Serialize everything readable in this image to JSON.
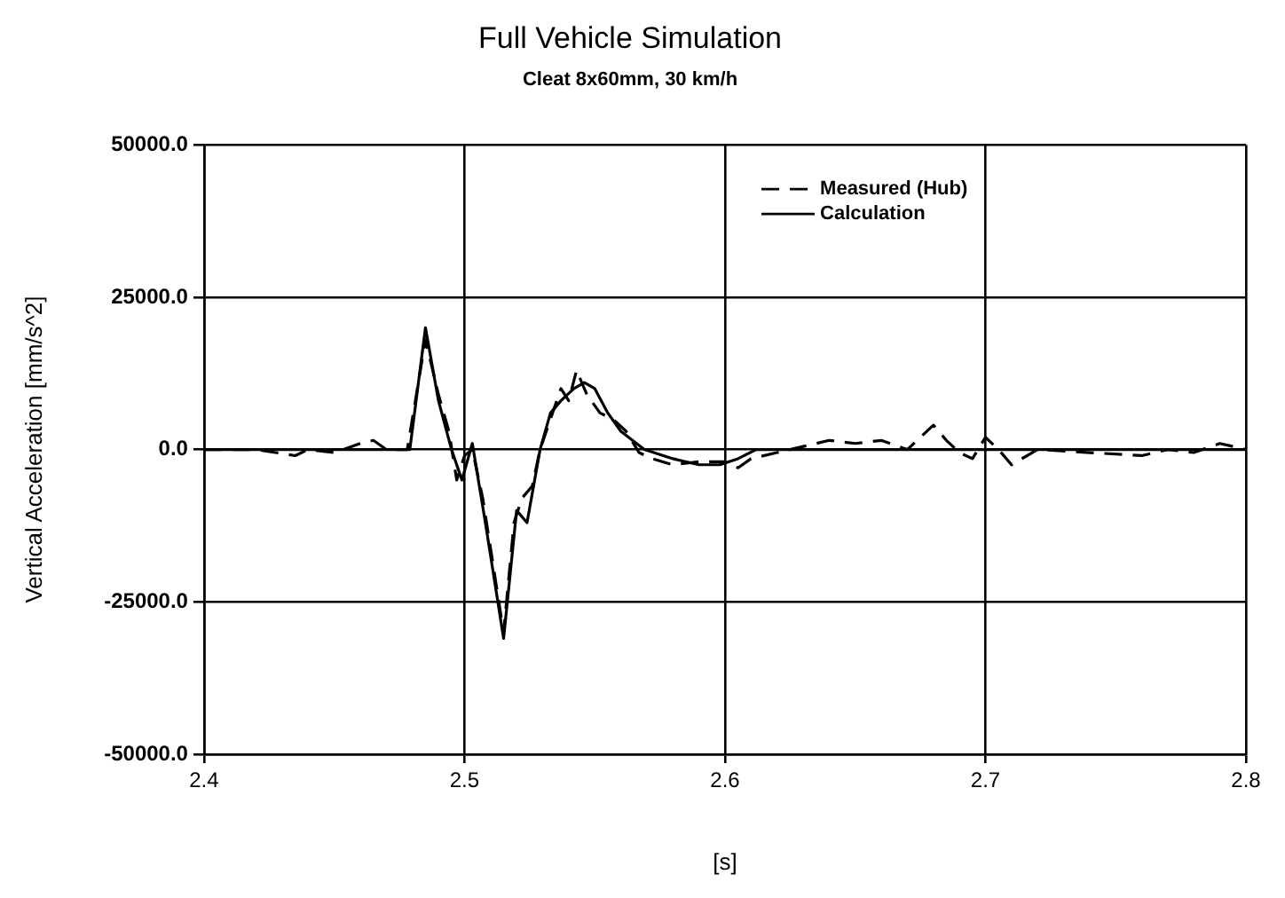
{
  "chart_data": {
    "type": "line",
    "title": "Full Vehicle Simulation",
    "subtitle": "Cleat 8x60mm, 30 km/h",
    "xlabel": "[s]",
    "ylabel": "Vertical Acceleration [mm/s^2]",
    "xlim": [
      2.4,
      2.8
    ],
    "xticks": [
      2.4,
      2.5,
      2.6,
      2.7,
      2.8
    ],
    "ylim": [
      -50000,
      50000
    ],
    "yticks": [
      {
        "value": -50000,
        "label": "-50000.0"
      },
      {
        "value": -25000,
        "label": "-25000.0"
      },
      {
        "value": 0,
        "label": "0.0"
      },
      {
        "value": 25000,
        "label": "25000.0"
      },
      {
        "value": 50000,
        "label": "50000.0"
      }
    ],
    "grid": true,
    "legend": "top right",
    "marker": "none",
    "series": [
      {
        "name": "Measured (Hub)",
        "color": "#000000",
        "line_style": "dashed",
        "x": [
          2.4,
          2.42,
          2.435,
          2.44,
          2.45,
          2.46,
          2.465,
          2.47,
          2.478,
          2.485,
          2.49,
          2.494,
          2.497,
          2.5,
          2.503,
          2.507,
          2.515,
          2.519,
          2.522,
          2.526,
          2.529,
          2.533,
          2.537,
          2.54,
          2.543,
          2.547,
          2.552,
          2.557,
          2.562,
          2.567,
          2.572,
          2.58,
          2.59,
          2.6,
          2.605,
          2.61,
          2.62,
          2.63,
          2.64,
          2.65,
          2.66,
          2.67,
          2.68,
          2.685,
          2.69,
          2.695,
          2.7,
          2.705,
          2.71,
          2.72,
          2.74,
          2.76,
          2.77,
          2.78,
          2.79,
          2.8
        ],
        "values": [
          0,
          0,
          -1000,
          0,
          -500,
          1000,
          1500,
          0,
          0,
          18000,
          9000,
          3000,
          -5000,
          -1000,
          0,
          -8000,
          -30000,
          -12000,
          -8000,
          -6000,
          0,
          5000,
          10000,
          8000,
          13000,
          9000,
          6000,
          5000,
          3000,
          -500,
          -1500,
          -2500,
          -2000,
          -2000,
          -3000,
          -1500,
          -500,
          500,
          1500,
          1000,
          1500,
          0,
          4000,
          1500,
          -500,
          -1500,
          2000,
          0,
          -2500,
          0,
          -500,
          -1000,
          0,
          -500,
          1000,
          0
        ]
      },
      {
        "name": "Calculation",
        "color": "#000000",
        "line_style": "solid",
        "x": [
          2.4,
          2.47,
          2.479,
          2.485,
          2.49,
          2.495,
          2.499,
          2.503,
          2.508,
          2.515,
          2.52,
          2.524,
          2.529,
          2.533,
          2.537,
          2.542,
          2.546,
          2.55,
          2.555,
          2.56,
          2.569,
          2.58,
          2.59,
          2.598,
          2.605,
          2.612,
          2.65,
          2.7,
          2.75,
          2.8
        ],
        "values": [
          0,
          0,
          0,
          20000,
          8000,
          0,
          -5000,
          1000,
          -12000,
          -31000,
          -10000,
          -12000,
          0,
          6000,
          8000,
          10000,
          11000,
          10000,
          6000,
          3000,
          0,
          -1500,
          -2500,
          -2500,
          -1500,
          0,
          0,
          0,
          0,
          0
        ]
      }
    ]
  }
}
